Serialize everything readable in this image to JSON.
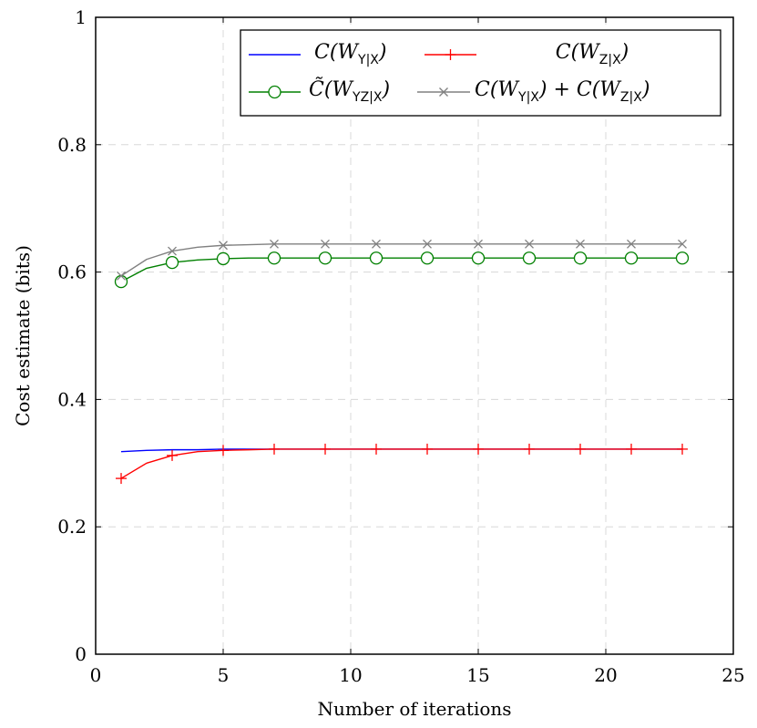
{
  "chart_data": {
    "type": "line",
    "xlabel": "Number of iterations",
    "ylabel": "Cost estimate (bits)",
    "xlim": [
      0,
      25
    ],
    "ylim": [
      0,
      1
    ],
    "xticks": [
      0,
      5,
      10,
      15,
      20,
      25
    ],
    "yticks": [
      0,
      0.2,
      0.4,
      0.6,
      0.8,
      1
    ],
    "xtick_labels": [
      "0",
      "5",
      "10",
      "15",
      "20",
      "25"
    ],
    "ytick_labels": [
      "0",
      "0.2",
      "0.4",
      "0.6",
      "0.8",
      "1"
    ],
    "grid": true,
    "legend_position": "top-right",
    "x": [
      1,
      2,
      3,
      4,
      5,
      6,
      7,
      8,
      9,
      10,
      11,
      12,
      13,
      14,
      15,
      16,
      17,
      18,
      19,
      20,
      21,
      22,
      23
    ],
    "series": [
      {
        "name": "C(W_{Y|X})",
        "color": "#0000ff",
        "marker": "none",
        "values": [
          0.318,
          0.32,
          0.321,
          0.321,
          0.322,
          0.322,
          0.322,
          0.322,
          0.322,
          0.322,
          0.322,
          0.322,
          0.322,
          0.322,
          0.322,
          0.322,
          0.322,
          0.322,
          0.322,
          0.322,
          0.322,
          0.322,
          0.322
        ]
      },
      {
        "name": "C(W_{Z|X})",
        "color": "#ff0000",
        "marker": "plus",
        "values": [
          0.276,
          0.3,
          0.312,
          0.318,
          0.32,
          0.321,
          0.322,
          0.322,
          0.322,
          0.322,
          0.322,
          0.322,
          0.322,
          0.322,
          0.322,
          0.322,
          0.322,
          0.322,
          0.322,
          0.322,
          0.322,
          0.322,
          0.322
        ]
      },
      {
        "name": "C̃(W_{YZ|X})",
        "color": "#008000",
        "marker": "circle",
        "values": [
          0.585,
          0.606,
          0.615,
          0.619,
          0.621,
          0.622,
          0.622,
          0.622,
          0.622,
          0.622,
          0.622,
          0.622,
          0.622,
          0.622,
          0.622,
          0.622,
          0.622,
          0.622,
          0.622,
          0.622,
          0.622,
          0.622,
          0.622
        ]
      },
      {
        "name": "C(W_{Y|X}) + C(W_{Z|X})",
        "color": "#808080",
        "marker": "x",
        "values": [
          0.594,
          0.62,
          0.633,
          0.639,
          0.642,
          0.643,
          0.644,
          0.644,
          0.644,
          0.644,
          0.644,
          0.644,
          0.644,
          0.644,
          0.644,
          0.644,
          0.644,
          0.644,
          0.644,
          0.644,
          0.644,
          0.644,
          0.644
        ]
      }
    ],
    "marker_x": [
      1,
      3,
      5,
      7,
      9,
      11,
      13,
      15,
      17,
      19,
      21,
      23
    ]
  },
  "legend": {
    "entries": [
      {
        "main": "C(W",
        "sub": "Y|X",
        "tail": ")"
      },
      {
        "main": "C(W",
        "sub": "Z|X",
        "tail": ")"
      },
      {
        "main": "C̃(W",
        "sub": "YZ|X",
        "tail": ")"
      },
      {
        "main": "C(W",
        "sub": "Y|X",
        "tail": ") + C(W",
        "sub2": "Z|X",
        "tail2": ")"
      }
    ]
  }
}
